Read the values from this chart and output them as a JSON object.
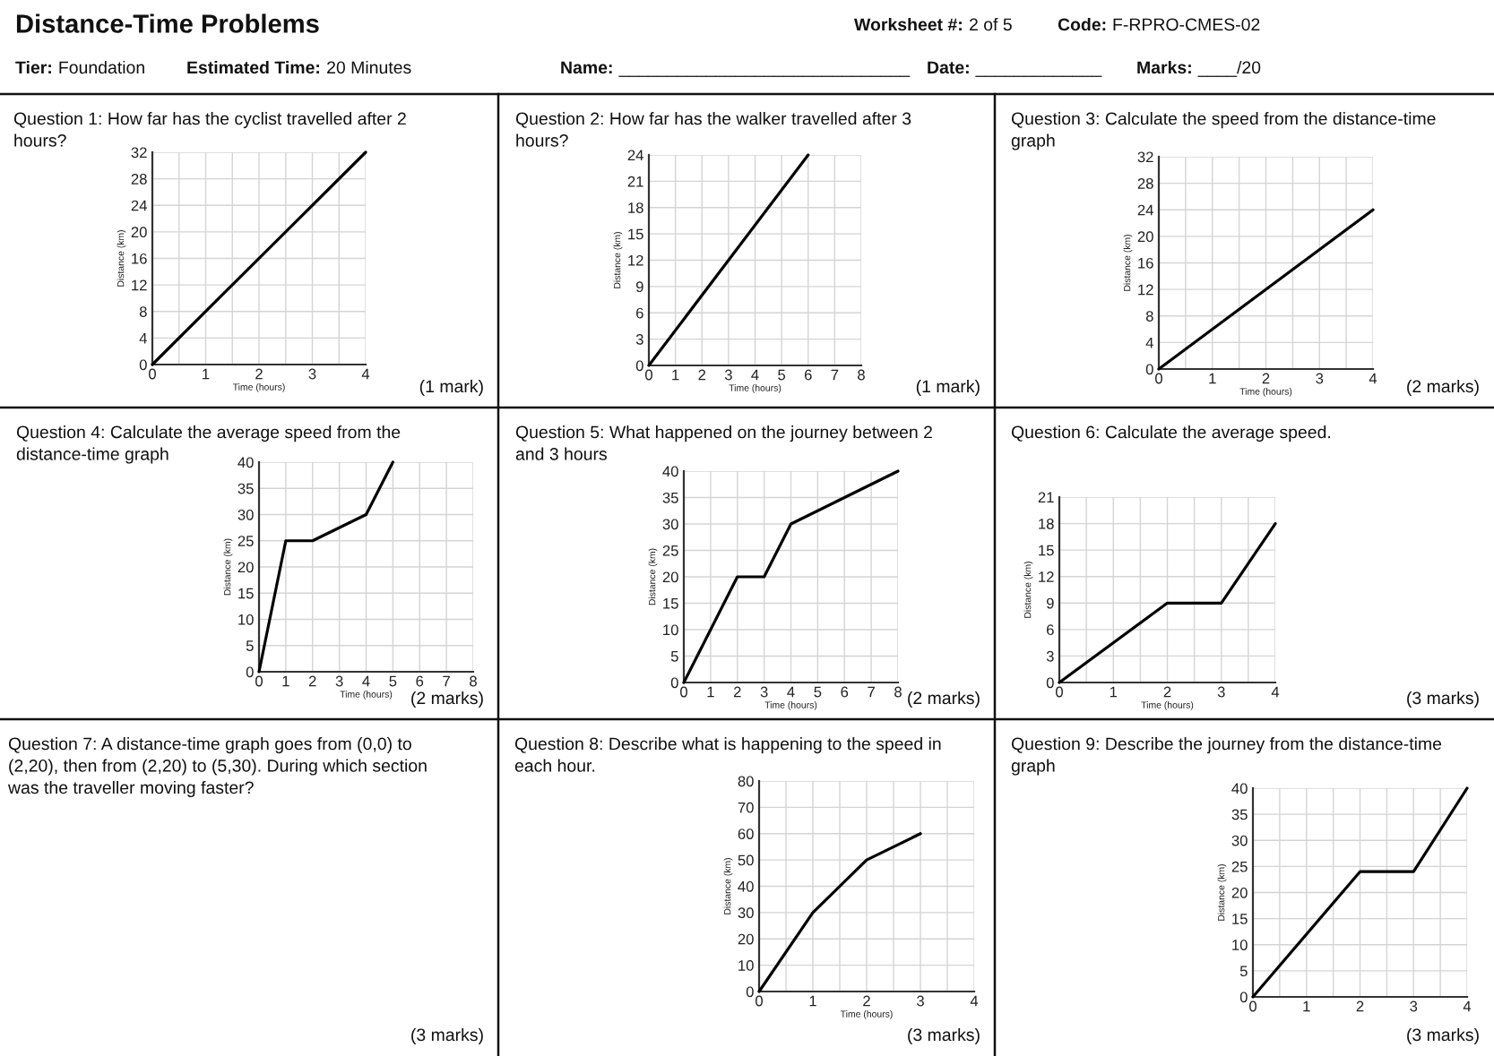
{
  "chart_data": [
    {
      "type": "other",
      "title": "Distance-Time Problems",
      "annotations": [
        "Worksheet #:",
        "2 of 5",
        "Code:",
        "F-RPRO-CMES-02",
        "Tier:",
        "Foundation",
        "Estimated Time:",
        "20 Minutes",
        "Name:",
        "______________________________",
        "Date:",
        "_____________",
        "Marks:",
        "____/20"
      ]
    },
    {
      "type": "line",
      "title": "Question 1: How far has the cyclist travelled after 2 hours?",
      "xlabel": "Time (hours)",
      "ylabel": "Distance (km)",
      "x": [
        0,
        4
      ],
      "values": [
        0,
        32
      ],
      "color": "#000000",
      "xlim": [
        0,
        4
      ],
      "ylim": [
        0,
        32
      ],
      "xticks": [
        0,
        {
          "value": 0.5,
          "label": null
        },
        1,
        {
          "value": 1.5,
          "label": null
        },
        2,
        {
          "value": 2.5,
          "label": null
        },
        3,
        {
          "value": 3.5,
          "label": null
        },
        4
      ],
      "yticks": [
        0,
        4,
        8,
        12,
        16,
        20,
        24,
        28,
        32
      ],
      "grid": true,
      "annotations": [
        "(1 mark)"
      ]
    },
    {
      "type": "line",
      "title": "Question 2: How far has the walker travelled after 3 hours?",
      "xlabel": "Time (hours)",
      "ylabel": "Distance (km)",
      "x": [
        0,
        6
      ],
      "values": [
        0,
        24
      ],
      "color": "#000000",
      "xlim": [
        0,
        8
      ],
      "ylim": [
        0,
        24
      ],
      "xticks": [
        0,
        1,
        2,
        3,
        4,
        5,
        6,
        7,
        8
      ],
      "yticks": [
        0,
        3,
        6,
        9,
        12,
        15,
        18,
        21,
        24
      ],
      "grid": true,
      "annotations": [
        "(1 mark)"
      ]
    },
    {
      "type": "line",
      "title": "Question 3: Calculate the speed from the distance-time graph",
      "xlabel": "Time (hours)",
      "ylabel": "Distance (km)",
      "x": [
        0,
        4
      ],
      "values": [
        0,
        24
      ],
      "color": "#000000",
      "xlim": [
        0,
        4
      ],
      "ylim": [
        0,
        32
      ],
      "xticks": [
        0,
        {
          "value": 0.5,
          "label": null
        },
        1,
        {
          "value": 1.5,
          "label": null
        },
        2,
        {
          "value": 2.5,
          "label": null
        },
        3,
        {
          "value": 3.5,
          "label": null
        },
        4
      ],
      "yticks": [
        0,
        4,
        8,
        12,
        16,
        20,
        24,
        28,
        32
      ],
      "grid": true,
      "annotations": [
        "(2 marks)"
      ]
    },
    {
      "type": "line",
      "title": "Question 4: Calculate the average speed from the distance-time graph",
      "xlabel": "Time (hours)",
      "ylabel": "Distance (km)",
      "x": [
        0,
        1,
        2,
        4,
        5
      ],
      "values": [
        0,
        25,
        25,
        30,
        40
      ],
      "color": "#000000",
      "xlim": [
        0,
        8
      ],
      "ylim": [
        0,
        40
      ],
      "xticks": [
        0,
        1,
        2,
        3,
        4,
        5,
        6,
        7,
        8
      ],
      "yticks": [
        0,
        5,
        10,
        15,
        20,
        25,
        30,
        35,
        40
      ],
      "grid": true,
      "annotations": [
        "(2 marks)"
      ]
    },
    {
      "type": "line",
      "title": "Question 5: What happened on the journey between 2 and 3 hours",
      "xlabel": "Time (hours)",
      "ylabel": "Distance (km)",
      "x": [
        0,
        2,
        3,
        4,
        8
      ],
      "values": [
        0,
        20,
        20,
        30,
        40
      ],
      "color": "#000000",
      "xlim": [
        0,
        8
      ],
      "ylim": [
        0,
        40
      ],
      "xticks": [
        0,
        1,
        2,
        3,
        4,
        5,
        6,
        7,
        8
      ],
      "yticks": [
        0,
        5,
        10,
        15,
        20,
        25,
        30,
        35,
        40
      ],
      "grid": true,
      "annotations": [
        "(2 marks)"
      ]
    },
    {
      "type": "line",
      "title": "Question 6: Calculate the average speed.",
      "xlabel": "Time (hours)",
      "ylabel": "Distance (km)",
      "x": [
        0,
        2,
        3,
        4
      ],
      "values": [
        0,
        9,
        9,
        18
      ],
      "color": "#000000",
      "xlim": [
        0,
        4
      ],
      "ylim": [
        0,
        21
      ],
      "xticks": [
        0,
        {
          "value": 0.5,
          "label": null
        },
        1,
        {
          "value": 1.5,
          "label": null
        },
        2,
        {
          "value": 2.5,
          "label": null
        },
        3,
        {
          "value": 3.5,
          "label": null
        },
        4
      ],
      "yticks": [
        0,
        3,
        6,
        9,
        12,
        15,
        18,
        21
      ],
      "grid": true,
      "annotations": [
        "(3 marks)"
      ]
    },
    {
      "type": "other",
      "title": "Question 7: A distance-time graph goes from (0,0) to (2,20), then from (2,20) to (5,30). During which section was the traveller moving faster?",
      "annotations": [
        "(3 marks)"
      ]
    },
    {
      "type": "line",
      "title": "Question 8: Describe what is happening to the speed in each hour.",
      "xlabel": "Time (hours)",
      "ylabel": "Distance (km)",
      "x": [
        0,
        1,
        2,
        3
      ],
      "values": [
        0,
        30,
        50,
        60
      ],
      "color": "#000000",
      "xlim": [
        0,
        4
      ],
      "ylim": [
        0,
        80
      ],
      "xticks": [
        0,
        {
          "value": 0.5,
          "label": null
        },
        1,
        {
          "value": 1.5,
          "label": null
        },
        2,
        {
          "value": 2.5,
          "label": null
        },
        3,
        {
          "value": 3.5,
          "label": null
        },
        4
      ],
      "yticks": [
        0,
        10,
        20,
        30,
        40,
        50,
        60,
        70,
        80
      ],
      "grid": true,
      "annotations": [
        "(3 marks)"
      ]
    },
    {
      "type": "line",
      "title": "Question 9: Describe the journey from the distance-time graph",
      "ylabel": "Distance (km)",
      "x": [
        0,
        2,
        3,
        4
      ],
      "values": [
        0,
        24,
        24,
        40
      ],
      "color": "#000000",
      "xlim": [
        0,
        4
      ],
      "ylim": [
        0,
        40
      ],
      "xticks": [
        0,
        {
          "value": 0.5,
          "label": null
        },
        1,
        {
          "value": 1.5,
          "label": null
        },
        2,
        {
          "value": 2.5,
          "label": null
        },
        3,
        {
          "value": 3.5,
          "label": null
        },
        4
      ],
      "yticks": [
        0,
        5,
        10,
        15,
        20,
        25,
        30,
        35,
        40
      ],
      "grid": true,
      "annotations": [
        "(3 marks)"
      ]
    }
  ]
}
